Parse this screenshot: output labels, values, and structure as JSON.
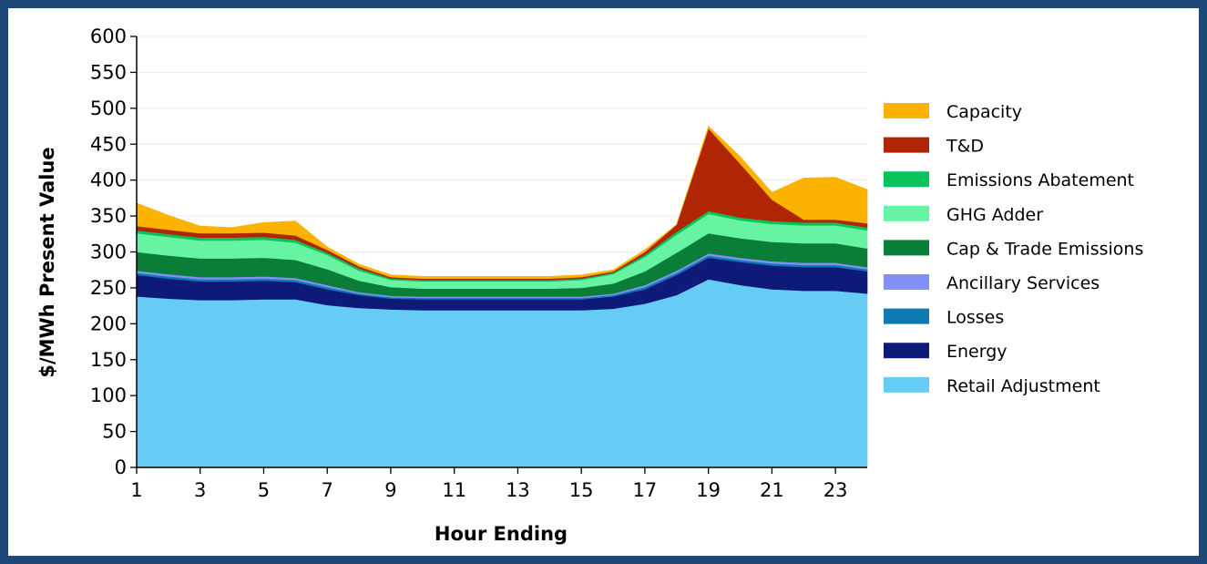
{
  "chart_data": {
    "type": "area",
    "stacked": true,
    "xlabel": "Hour Ending",
    "ylabel": "$/MWh Present Value",
    "x": [
      1,
      2,
      3,
      4,
      5,
      6,
      7,
      8,
      9,
      10,
      11,
      12,
      13,
      14,
      15,
      16,
      17,
      18,
      19,
      20,
      21,
      22,
      23,
      24
    ],
    "xlim": [
      1,
      24
    ],
    "ylim": [
      0,
      600
    ],
    "xticks": [
      1,
      3,
      5,
      7,
      9,
      11,
      13,
      15,
      17,
      19,
      21,
      23
    ],
    "yticks": [
      0,
      50,
      100,
      150,
      200,
      250,
      300,
      350,
      400,
      450,
      500,
      550,
      600
    ],
    "grid": "horizontal",
    "legend_position": "right",
    "series": [
      {
        "name": "Retail Adjustment",
        "color": "#66ccf5",
        "values": [
          238,
          235,
          233,
          233,
          234,
          234,
          226,
          222,
          220,
          219,
          219,
          219,
          219,
          219,
          219,
          221,
          228,
          240,
          262,
          254,
          248,
          246,
          246,
          242
        ]
      },
      {
        "name": "Energy",
        "color": "#0d1a78",
        "values": [
          30,
          28,
          26,
          26,
          26,
          24,
          22,
          18,
          15,
          15,
          15,
          15,
          15,
          15,
          15,
          17,
          20,
          28,
          30,
          32,
          33,
          33,
          33,
          31
        ]
      },
      {
        "name": "Losses",
        "color": "#0e79b2",
        "values": [
          3,
          3,
          3,
          3,
          3,
          3,
          3,
          2,
          2,
          2,
          2,
          2,
          2,
          2,
          2,
          2,
          3,
          3,
          3,
          3,
          3,
          3,
          3,
          3
        ]
      },
      {
        "name": "Ancillary Services",
        "color": "#8390fa",
        "values": [
          3,
          3,
          3,
          3,
          3,
          3,
          3,
          2,
          2,
          2,
          2,
          2,
          2,
          2,
          2,
          2,
          3,
          3,
          3,
          3,
          3,
          3,
          3,
          3
        ]
      },
      {
        "name": "Cap & Trade Emissions",
        "color": "#0a7d38",
        "values": [
          26,
          26,
          26,
          26,
          26,
          25,
          22,
          16,
          12,
          11,
          11,
          11,
          11,
          11,
          12,
          14,
          19,
          25,
          28,
          27,
          27,
          27,
          27,
          26
        ]
      },
      {
        "name": "GHG Adder",
        "color": "#67f4a2",
        "values": [
          26,
          26,
          25,
          25,
          25,
          24,
          20,
          14,
          10,
          10,
          10,
          10,
          10,
          10,
          11,
          13,
          20,
          25,
          27,
          25,
          25,
          25,
          25,
          25
        ]
      },
      {
        "name": "Emissions Abatement",
        "color": "#08c35a",
        "values": [
          4,
          4,
          4,
          4,
          4,
          4,
          3,
          3,
          2,
          2,
          2,
          2,
          2,
          2,
          2,
          2,
          3,
          4,
          4,
          4,
          4,
          4,
          4,
          4
        ]
      },
      {
        "name": "T&D",
        "color": "#b02604",
        "values": [
          6,
          6,
          6,
          6,
          6,
          6,
          4,
          3,
          2,
          2,
          2,
          2,
          2,
          2,
          2,
          2,
          4,
          10,
          115,
          75,
          30,
          4,
          4,
          6
        ]
      },
      {
        "name": "Capacity",
        "color": "#fcb300",
        "values": [
          32,
          20,
          10,
          8,
          14,
          20,
          4,
          3,
          3,
          3,
          3,
          3,
          3,
          3,
          3,
          2,
          3,
          0,
          3,
          10,
          10,
          58,
          59,
          47
        ]
      }
    ]
  }
}
